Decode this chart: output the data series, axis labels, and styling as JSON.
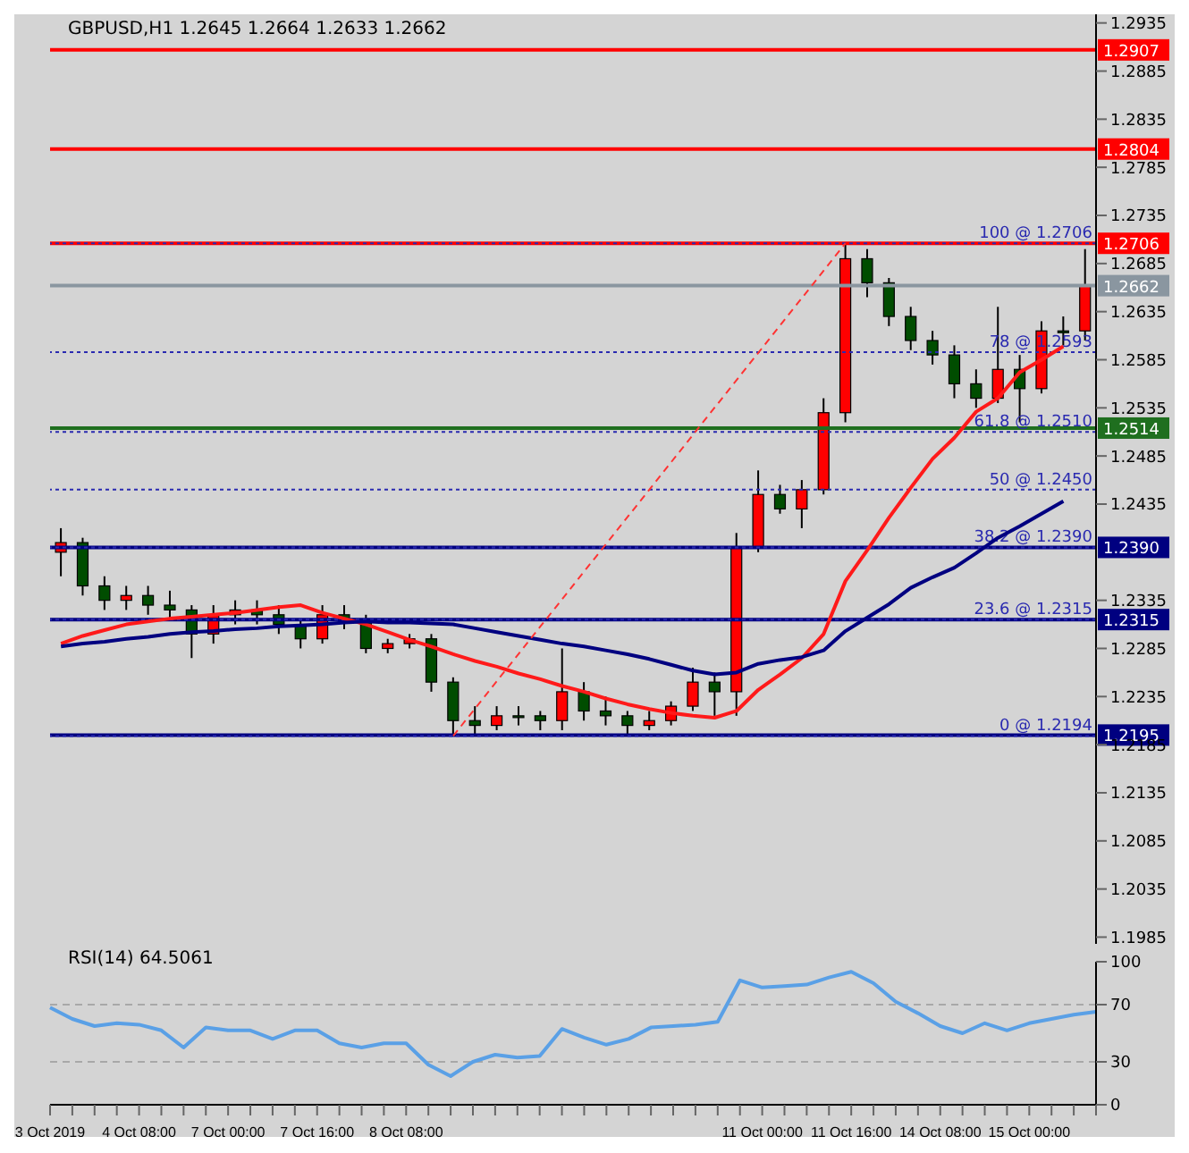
{
  "chart_data": [
    {
      "type": "candlestick",
      "title": "GBPUSD,H1 1.2645 1.2664 1.2633 1.2662",
      "ohlc": [
        [
          1.2385,
          1.241,
          1.236,
          1.2395
        ],
        [
          1.2395,
          1.24,
          1.234,
          1.235
        ],
        [
          1.235,
          1.236,
          1.2325,
          1.2335
        ],
        [
          1.2335,
          1.235,
          1.2325,
          1.234
        ],
        [
          1.234,
          1.235,
          1.232,
          1.233
        ],
        [
          1.233,
          1.2345,
          1.2315,
          1.2325
        ],
        [
          1.2325,
          1.233,
          1.2275,
          1.23
        ],
        [
          1.23,
          1.233,
          1.229,
          1.232
        ],
        [
          1.232,
          1.2335,
          1.231,
          1.2325
        ],
        [
          1.2325,
          1.2335,
          1.231,
          1.232
        ],
        [
          1.232,
          1.233,
          1.23,
          1.231
        ],
        [
          1.231,
          1.2315,
          1.2285,
          1.2295
        ],
        [
          1.2295,
          1.233,
          1.229,
          1.232
        ],
        [
          1.232,
          1.233,
          1.2305,
          1.2315
        ],
        [
          1.2315,
          1.232,
          1.228,
          1.2285
        ],
        [
          1.2285,
          1.2295,
          1.228,
          1.229
        ],
        [
          1.229,
          1.23,
          1.2285,
          1.2295
        ],
        [
          1.2295,
          1.23,
          1.224,
          1.225
        ],
        [
          1.225,
          1.2255,
          1.2195,
          1.221
        ],
        [
          1.221,
          1.2225,
          1.2195,
          1.2205
        ],
        [
          1.2205,
          1.2225,
          1.22,
          1.2215
        ],
        [
          1.2215,
          1.2225,
          1.2205,
          1.2215
        ],
        [
          1.2215,
          1.222,
          1.22,
          1.221
        ],
        [
          1.221,
          1.2285,
          1.22,
          1.224
        ],
        [
          1.224,
          1.225,
          1.221,
          1.222
        ],
        [
          1.222,
          1.2235,
          1.2205,
          1.2215
        ],
        [
          1.2215,
          1.222,
          1.2195,
          1.2205
        ],
        [
          1.2205,
          1.222,
          1.22,
          1.221
        ],
        [
          1.221,
          1.223,
          1.2205,
          1.2225
        ],
        [
          1.2225,
          1.2265,
          1.222,
          1.225
        ],
        [
          1.225,
          1.226,
          1.2215,
          1.224
        ],
        [
          1.224,
          1.2405,
          1.2215,
          1.239
        ],
        [
          1.239,
          1.247,
          1.2385,
          1.2445
        ],
        [
          1.2445,
          1.2455,
          1.2425,
          1.243
        ],
        [
          1.243,
          1.246,
          1.241,
          1.245
        ],
        [
          1.245,
          1.2545,
          1.2445,
          1.253
        ],
        [
          1.253,
          1.2706,
          1.252,
          1.269
        ],
        [
          1.269,
          1.27,
          1.265,
          1.2665
        ],
        [
          1.2665,
          1.267,
          1.262,
          1.263
        ],
        [
          1.263,
          1.264,
          1.2595,
          1.2605
        ],
        [
          1.2605,
          1.2615,
          1.258,
          1.259
        ],
        [
          1.259,
          1.26,
          1.2545,
          1.256
        ],
        [
          1.256,
          1.2575,
          1.2535,
          1.2545
        ],
        [
          1.2545,
          1.264,
          1.254,
          1.2575
        ],
        [
          1.2575,
          1.259,
          1.252,
          1.2555
        ],
        [
          1.2555,
          1.2625,
          1.255,
          1.2615
        ],
        [
          1.2615,
          1.263,
          1.26,
          1.2615
        ],
        [
          1.2615,
          1.27,
          1.2605,
          1.2662
        ]
      ],
      "colors": [
        "#ff0000",
        "#004d00",
        "#004d00",
        "#ff0000",
        "#004d00",
        "#004d00",
        "#004d00",
        "#ff0000",
        "#ff0000",
        "#004d00",
        "#004d00",
        "#004d00",
        "#ff0000",
        "#004d00",
        "#004d00",
        "#ff0000",
        "#ff0000",
        "#004d00",
        "#004d00",
        "#004d00",
        "#ff0000",
        "#004d00",
        "#004d00",
        "#ff0000",
        "#004d00",
        "#004d00",
        "#004d00",
        "#ff0000",
        "#ff0000",
        "#ff0000",
        "#004d00",
        "#ff0000",
        "#ff0000",
        "#004d00",
        "#ff0000",
        "#ff0000",
        "#ff0000",
        "#004d00",
        "#004d00",
        "#004d00",
        "#004d00",
        "#004d00",
        "#004d00",
        "#ff0000",
        "#004d00",
        "#ff0000",
        "#004d00",
        "#ff0000"
      ],
      "series": [
        {
          "type": "line",
          "color": "#ff1a1a",
          "values": [
            1.229,
            1.2298,
            1.2304,
            1.231,
            1.2313,
            1.2316,
            1.2318,
            1.232,
            1.2322,
            1.2325,
            1.2328,
            1.233,
            1.2322,
            1.2316,
            1.231,
            1.2302,
            1.2294,
            1.2287,
            1.2279,
            1.2272,
            1.2266,
            1.2259,
            1.2253,
            1.2246,
            1.224,
            1.2233,
            1.2227,
            1.2222,
            1.2218,
            1.2215,
            1.2213,
            1.222,
            1.2242,
            1.2258,
            1.2275,
            1.23,
            1.2355,
            1.2387,
            1.2421,
            1.2452,
            1.2482,
            1.2504,
            1.2531,
            1.2545,
            1.2572,
            1.2585,
            1.2599,
            null
          ]
        },
        {
          "type": "line",
          "color": "#000080",
          "values": [
            1.2287,
            1.229,
            1.2292,
            1.2295,
            1.2297,
            1.23,
            1.2302,
            1.2303,
            1.2305,
            1.2306,
            1.2308,
            1.2309,
            1.231,
            1.2312,
            1.2313,
            1.2312,
            1.2312,
            1.2311,
            1.231,
            1.2306,
            1.2302,
            1.2298,
            1.2294,
            1.229,
            1.2287,
            1.2283,
            1.2279,
            1.2274,
            1.2268,
            1.2262,
            1.2258,
            1.226,
            1.2269,
            1.2273,
            1.2276,
            1.2283,
            1.2303,
            1.2317,
            1.2331,
            1.2348,
            1.2359,
            1.2369,
            1.2384,
            1.24,
            1.2412,
            1.2425,
            1.2438,
            null
          ]
        },
        {
          "type": "line",
          "color": "#ff3333",
          "line_style": "dashed",
          "values": [
            null,
            null,
            null,
            null,
            null,
            null,
            null,
            null,
            null,
            null,
            null,
            null,
            null,
            null,
            null,
            null,
            null,
            null,
            1.2194,
            null,
            null,
            null,
            null,
            null,
            null,
            null,
            null,
            null,
            null,
            null,
            null,
            null,
            null,
            null,
            null,
            null,
            1.2706,
            null,
            null,
            null,
            null,
            null,
            null,
            null,
            null,
            null,
            null,
            null
          ]
        }
      ],
      "ylim": [
        1.1978,
        1.2944
      ],
      "yticks": [
        1.1985,
        1.2035,
        1.2085,
        1.2135,
        1.2185,
        1.2235,
        1.2285,
        1.2335,
        1.2435,
        1.2485,
        1.2535,
        1.2585,
        1.2635,
        1.2685,
        1.2735,
        1.2785,
        1.2835,
        1.2885,
        1.2935
      ],
      "ref_lines": [
        {
          "axis": "y",
          "value": 1.2907,
          "label": "1.2907",
          "color": "#ff0000",
          "line_style": "solid"
        },
        {
          "axis": "y",
          "value": 1.2804,
          "label": "1.2804",
          "color": "#ff0000",
          "line_style": "solid"
        },
        {
          "axis": "y",
          "value": 1.2706,
          "label": "1.2706",
          "color": "#ff0000",
          "line_style": "solid"
        },
        {
          "axis": "y",
          "value": 1.2662,
          "label": "1.2662",
          "color": "#8a96a0",
          "line_style": "solid"
        },
        {
          "axis": "y",
          "value": 1.2514,
          "label": "1.2514",
          "color": "#1f6f1f",
          "line_style": "solid"
        },
        {
          "axis": "y",
          "value": 1.239,
          "label": "1.2390",
          "color": "#000080",
          "line_style": "solid"
        },
        {
          "axis": "y",
          "value": 1.2315,
          "label": "1.2315",
          "color": "#000080",
          "line_style": "solid"
        },
        {
          "axis": "y",
          "value": 1.2195,
          "label": "1.2195",
          "color": "#000080",
          "line_style": "solid"
        },
        {
          "axis": "y",
          "value": 1.2706,
          "label": "100 @ 1.2706",
          "color": "#2a2ab0",
          "line_style": "dotted"
        },
        {
          "axis": "y",
          "value": 1.2593,
          "label": "78 @ 1.2593",
          "color": "#2a2ab0",
          "line_style": "dotted"
        },
        {
          "axis": "y",
          "value": 1.251,
          "label": "61.8 @ 1.2510",
          "color": "#2a2ab0",
          "line_style": "dotted"
        },
        {
          "axis": "y",
          "value": 1.245,
          "label": "50 @ 1.2450",
          "color": "#2a2ab0",
          "line_style": "dotted"
        },
        {
          "axis": "y",
          "value": 1.239,
          "label": "38.2 @ 1.2390",
          "color": "#2a2ab0",
          "line_style": "dotted"
        },
        {
          "axis": "y",
          "value": 1.2315,
          "label": "23.6 @ 1.2315",
          "color": "#2a2ab0",
          "line_style": "dotted"
        },
        {
          "axis": "y",
          "value": 1.2194,
          "label": "0 @ 1.2194",
          "color": "#2a2ab0",
          "line_style": "dotted"
        }
      ],
      "tick_labels": "y"
    },
    {
      "type": "line",
      "title": "RSI(14) 64.5061",
      "categories": [
        "3 Oct 2019",
        null,
        null,
        null,
        "4 Oct 08:00",
        null,
        null,
        null,
        "7 Oct 00:00",
        null,
        null,
        null,
        "7 Oct 16:00",
        null,
        null,
        null,
        "8 Oct 08:00",
        null,
        null,
        null,
        null,
        null,
        null,
        null,
        null,
        null,
        null,
        null,
        null,
        null,
        null,
        null,
        "11 Oct 00:00",
        null,
        null,
        null,
        "11 Oct 16:00",
        null,
        null,
        null,
        "14 Oct 08:00",
        null,
        null,
        null,
        "15 Oct 00:00",
        null,
        null,
        null
      ],
      "series": [
        {
          "color": "#5aa0e6",
          "values": [
            68,
            60,
            55,
            57,
            56,
            52,
            40,
            54,
            52,
            52,
            46,
            52,
            52,
            43,
            40,
            43,
            43,
            28,
            20,
            30,
            35,
            33,
            34,
            53,
            47,
            42,
            46,
            54,
            55,
            56,
            58,
            87,
            82,
            83,
            84,
            89,
            93,
            85,
            72,
            64,
            55,
            50,
            57,
            52,
            57,
            60,
            63,
            65
          ]
        }
      ],
      "ylim": [
        0,
        100
      ],
      "yticks": [
        0,
        30,
        70,
        100
      ],
      "ref_lines": [
        {
          "axis": "y",
          "value": 30,
          "color": "#a8a8a8",
          "line_style": "dashed"
        },
        {
          "axis": "y",
          "value": 70,
          "color": "#a8a8a8",
          "line_style": "dashed"
        }
      ]
    }
  ]
}
